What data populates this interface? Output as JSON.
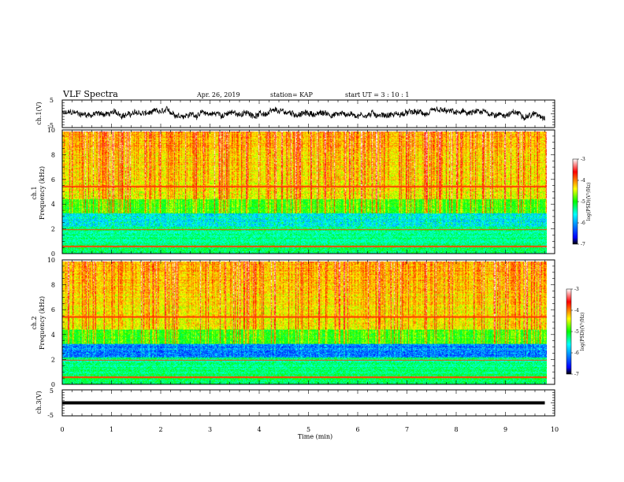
{
  "header": {
    "title": "VLF Spectra",
    "date": "Apr. 26, 2019",
    "station": "station= KAP",
    "start": "start  UT =   3 : 10 : 1"
  },
  "chart_data": [
    {
      "type": "line",
      "name": "ch1-voltage",
      "ylabel": "ch.1(V)",
      "xlim": [
        0,
        10
      ],
      "ylim": [
        -5,
        5
      ],
      "yticks": [
        "5",
        "-5"
      ],
      "trace_level": 0,
      "trace_amplitude": 1.2,
      "data_end_min": 9.8
    },
    {
      "type": "heatmap",
      "name": "ch1-spectrogram",
      "ylabel_top": "ch.1",
      "ylabel": "Frequency (kHz)",
      "xlim": [
        0,
        10
      ],
      "ylim": [
        0,
        10
      ],
      "yticks": [
        "0",
        "2",
        "4",
        "6",
        "8",
        "10"
      ],
      "data_end_min": 9.8,
      "colorbar": {
        "label": "log(PSD)(V²/Hz)",
        "ticks": [
          "-3",
          "-4",
          "-5",
          "-6",
          "-7"
        ],
        "range": [
          -7,
          -3
        ]
      }
    },
    {
      "type": "heatmap",
      "name": "ch2-spectrogram",
      "ylabel_top": "ch.2",
      "ylabel": "Frequency (kHz)",
      "xlim": [
        0,
        10
      ],
      "ylim": [
        0,
        10
      ],
      "yticks": [
        "0",
        "2",
        "4",
        "6",
        "8",
        "10"
      ],
      "data_end_min": 9.8,
      "colorbar": {
        "label": "log(PSD)(V²/Hz)",
        "ticks": [
          "-3",
          "-4",
          "-5",
          "-6",
          "-7"
        ],
        "range": [
          -7,
          -3
        ]
      }
    },
    {
      "type": "line",
      "name": "ch3-voltage",
      "ylabel": "ch.3(V)",
      "xlim": [
        0,
        10
      ],
      "ylim": [
        -5,
        5
      ],
      "yticks": [
        "5",
        "-5"
      ],
      "trace_level": 0,
      "trace_amplitude": 0,
      "data_end_min": 9.8
    }
  ],
  "xaxis": {
    "label": "Time  (min)",
    "ticks": [
      "0",
      "1",
      "2",
      "3",
      "4",
      "5",
      "6",
      "7",
      "8",
      "9",
      "10"
    ]
  }
}
